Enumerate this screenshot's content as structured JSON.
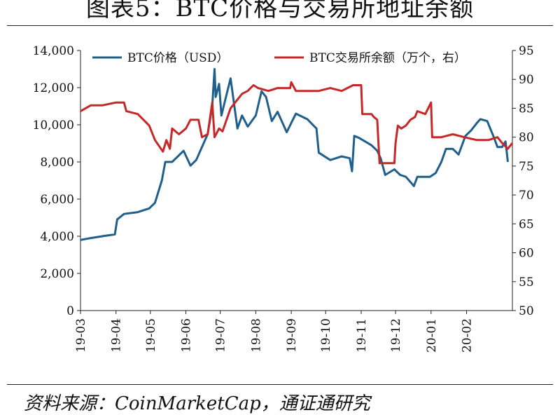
{
  "page": {
    "title": "图表5：BTC价格与交易所地址余额",
    "source": "资料来源：CoinMarketCap，通证通研究"
  },
  "chart_data": {
    "type": "line",
    "title": "图表5：BTC价格与交易所地址余额",
    "y_left": {
      "min": 0,
      "max": 14000,
      "ticks": [
        "0",
        "2,000",
        "4,000",
        "6,000",
        "8,000",
        "10,000",
        "12,000",
        "14,000"
      ]
    },
    "y_right": {
      "min": 50,
      "max": 95,
      "ticks": [
        "50",
        "55",
        "60",
        "65",
        "70",
        "75",
        "80",
        "85",
        "90",
        "95"
      ]
    },
    "x_start": "2019-03-01",
    "x_end": "2020-03-12",
    "x_ticks": [
      {
        "date": "2019-03-01",
        "label": "19-03"
      },
      {
        "date": "2019-04-01",
        "label": "19-04"
      },
      {
        "date": "2019-05-01",
        "label": "19-05"
      },
      {
        "date": "2019-06-01",
        "label": "19-06"
      },
      {
        "date": "2019-07-01",
        "label": "19-07"
      },
      {
        "date": "2019-08-01",
        "label": "19-08"
      },
      {
        "date": "2019-09-01",
        "label": "19-09"
      },
      {
        "date": "2019-10-01",
        "label": "19-10"
      },
      {
        "date": "2019-11-01",
        "label": "19-11"
      },
      {
        "date": "2019-12-01",
        "label": "19-12"
      },
      {
        "date": "2020-01-01",
        "label": "20-01"
      },
      {
        "date": "2020-02-01",
        "label": "20-02"
      }
    ],
    "grid": false,
    "legend_position": "top",
    "series": [
      {
        "name": "BTC价格（USD）",
        "axis": "left",
        "color": "#1f5f8b",
        "points": [
          [
            "2019-03-01",
            3800
          ],
          [
            "2019-03-10",
            3900
          ],
          [
            "2019-03-20",
            4000
          ],
          [
            "2019-03-31",
            4100
          ],
          [
            "2019-04-02",
            4900
          ],
          [
            "2019-04-08",
            5200
          ],
          [
            "2019-04-20",
            5300
          ],
          [
            "2019-04-30",
            5500
          ],
          [
            "2019-05-05",
            5800
          ],
          [
            "2019-05-11",
            7000
          ],
          [
            "2019-05-14",
            8000
          ],
          [
            "2019-05-20",
            8000
          ],
          [
            "2019-05-30",
            8600
          ],
          [
            "2019-06-05",
            7800
          ],
          [
            "2019-06-10",
            8100
          ],
          [
            "2019-06-15",
            8800
          ],
          [
            "2019-06-20",
            9500
          ],
          [
            "2019-06-24",
            11000
          ],
          [
            "2019-06-26",
            13000
          ],
          [
            "2019-06-27",
            11500
          ],
          [
            "2019-06-30",
            12200
          ],
          [
            "2019-07-02",
            10500
          ],
          [
            "2019-07-06",
            11500
          ],
          [
            "2019-07-10",
            12500
          ],
          [
            "2019-07-16",
            9800
          ],
          [
            "2019-07-20",
            10500
          ],
          [
            "2019-07-25",
            9900
          ],
          [
            "2019-08-01",
            10500
          ],
          [
            "2019-08-06",
            11800
          ],
          [
            "2019-08-10",
            11500
          ],
          [
            "2019-08-15",
            10200
          ],
          [
            "2019-08-20",
            10700
          ],
          [
            "2019-08-28",
            9600
          ],
          [
            "2019-09-05",
            10600
          ],
          [
            "2019-09-15",
            10300
          ],
          [
            "2019-09-23",
            9800
          ],
          [
            "2019-09-25",
            8500
          ],
          [
            "2019-10-05",
            8100
          ],
          [
            "2019-10-15",
            8300
          ],
          [
            "2019-10-22",
            8200
          ],
          [
            "2019-10-24",
            7500
          ],
          [
            "2019-10-26",
            9400
          ],
          [
            "2019-10-30",
            9300
          ],
          [
            "2019-11-10",
            8900
          ],
          [
            "2019-11-15",
            8600
          ],
          [
            "2019-11-18",
            8200
          ],
          [
            "2019-11-22",
            7300
          ],
          [
            "2019-11-30",
            7600
          ],
          [
            "2019-12-05",
            7300
          ],
          [
            "2019-12-10",
            7200
          ],
          [
            "2019-12-17",
            6700
          ],
          [
            "2019-12-20",
            7200
          ],
          [
            "2019-12-31",
            7200
          ],
          [
            "2020-01-05",
            7400
          ],
          [
            "2020-01-10",
            8000
          ],
          [
            "2020-01-14",
            8700
          ],
          [
            "2020-01-20",
            8700
          ],
          [
            "2020-01-25",
            8400
          ],
          [
            "2020-01-31",
            9400
          ],
          [
            "2020-02-05",
            9700
          ],
          [
            "2020-02-10",
            10100
          ],
          [
            "2020-02-13",
            10300
          ],
          [
            "2020-02-19",
            10200
          ],
          [
            "2020-02-25",
            9300
          ],
          [
            "2020-02-28",
            8800
          ],
          [
            "2020-03-03",
            8800
          ],
          [
            "2020-03-06",
            9100
          ],
          [
            "2020-03-08",
            8000
          ]
        ]
      },
      {
        "name": "BTC交易所余额（万个，右）",
        "axis": "right",
        "color": "#c62828",
        "points": [
          [
            "2019-03-01",
            84.5
          ],
          [
            "2019-03-10",
            85.5
          ],
          [
            "2019-03-20",
            85.5
          ],
          [
            "2019-04-01",
            86.0
          ],
          [
            "2019-04-08",
            86.0
          ],
          [
            "2019-04-10",
            84.5
          ],
          [
            "2019-04-20",
            84.0
          ],
          [
            "2019-04-30",
            82.0
          ],
          [
            "2019-05-05",
            79.5
          ],
          [
            "2019-05-12",
            77.5
          ],
          [
            "2019-05-15",
            79.5
          ],
          [
            "2019-05-18",
            78.0
          ],
          [
            "2019-05-20",
            81.5
          ],
          [
            "2019-05-26",
            80.5
          ],
          [
            "2019-06-01",
            81.5
          ],
          [
            "2019-06-05",
            83.0
          ],
          [
            "2019-06-12",
            83.0
          ],
          [
            "2019-06-15",
            80.0
          ],
          [
            "2019-06-20",
            80.5
          ],
          [
            "2019-06-24",
            86.0
          ],
          [
            "2019-06-26",
            80.0
          ],
          [
            "2019-06-30",
            81.5
          ],
          [
            "2019-07-03",
            81.0
          ],
          [
            "2019-07-10",
            85.0
          ],
          [
            "2019-07-20",
            87.5
          ],
          [
            "2019-07-25",
            88.0
          ],
          [
            "2019-07-30",
            89.0
          ],
          [
            "2019-08-03",
            88.5
          ],
          [
            "2019-08-12",
            88.0
          ],
          [
            "2019-08-20",
            88.5
          ],
          [
            "2019-08-31",
            88.5
          ],
          [
            "2019-09-01",
            89.5
          ],
          [
            "2019-09-05",
            88.0
          ],
          [
            "2019-09-15",
            88.0
          ],
          [
            "2019-09-25",
            88.0
          ],
          [
            "2019-10-05",
            88.5
          ],
          [
            "2019-10-15",
            88.0
          ],
          [
            "2019-10-25",
            89.0
          ],
          [
            "2019-11-01",
            89.0
          ],
          [
            "2019-11-02",
            84.0
          ],
          [
            "2019-11-10",
            84.0
          ],
          [
            "2019-11-12",
            83.5
          ],
          [
            "2019-11-15",
            83.0
          ],
          [
            "2019-11-17",
            75.5
          ],
          [
            "2019-11-25",
            75.5
          ],
          [
            "2019-11-30",
            75.5
          ],
          [
            "2019-12-01",
            79.0
          ],
          [
            "2019-12-03",
            82.0
          ],
          [
            "2019-12-06",
            81.5
          ],
          [
            "2019-12-10",
            82.0
          ],
          [
            "2019-12-14",
            83.0
          ],
          [
            "2019-12-18",
            83.5
          ],
          [
            "2019-12-20",
            84.5
          ],
          [
            "2019-12-27",
            84.0
          ],
          [
            "2020-01-01",
            86.0
          ],
          [
            "2020-01-02",
            80.0
          ],
          [
            "2020-01-10",
            80.0
          ],
          [
            "2020-01-20",
            80.5
          ],
          [
            "2020-01-30",
            80.0
          ],
          [
            "2020-02-10",
            79.5
          ],
          [
            "2020-02-20",
            79.5
          ],
          [
            "2020-02-28",
            80.0
          ],
          [
            "2020-03-03",
            79.0
          ],
          [
            "2020-03-08",
            78.0
          ],
          [
            "2020-03-12",
            79.0
          ]
        ]
      }
    ]
  }
}
